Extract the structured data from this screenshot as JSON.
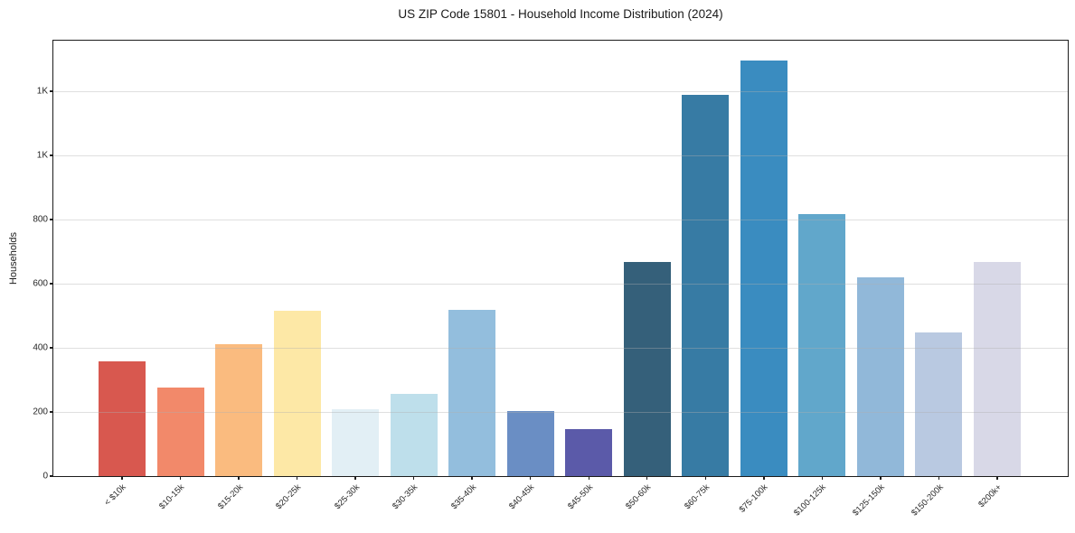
{
  "chart_data": {
    "type": "bar",
    "title": "US ZIP Code 15801 - Household Income Distribution (2024)",
    "xlabel": "",
    "ylabel": "Households",
    "categories": [
      "< $10k",
      "$10-15k",
      "$15-20k",
      "$20-25k",
      "$25-30k",
      "$30-35k",
      "$35-40k",
      "$40-45k",
      "$45-50k",
      "$50-60k",
      "$60-75k",
      "$75-100k",
      "$100-125k",
      "$125-150k",
      "$150-200k",
      "$200k+"
    ],
    "values": [
      357,
      276,
      411,
      515,
      210,
      256,
      518,
      203,
      146,
      667,
      1190,
      1295,
      817,
      621,
      448,
      669
    ],
    "bar_colors": [
      "#d8584f",
      "#f2896a",
      "#fabb7f",
      "#fde8a6",
      "#e2eff5",
      "#bedfeb",
      "#93bedd",
      "#6a8ec4",
      "#5b5aa9",
      "#35607a",
      "#377ba4",
      "#3a8cc0",
      "#61a7cb",
      "#91b8d9",
      "#b9c9e1",
      "#d8d8e7"
    ],
    "yticks": [
      {
        "value": 0,
        "label": "0"
      },
      {
        "value": 200,
        "label": "200"
      },
      {
        "value": 400,
        "label": "400"
      },
      {
        "value": 600,
        "label": "600"
      },
      {
        "value": 800,
        "label": "800"
      },
      {
        "value": 1000,
        "label": "1K"
      },
      {
        "value": 1200,
        "label": "1K"
      }
    ],
    "ylim": [
      0,
      1358
    ],
    "grid": "horizontal",
    "legend": "none",
    "x_tick_rotation": 45
  }
}
